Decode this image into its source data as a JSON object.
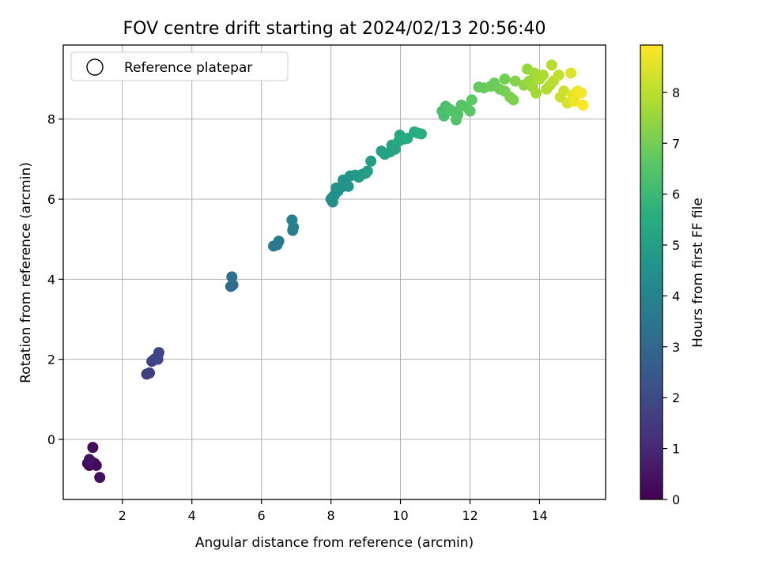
{
  "chart_data": {
    "type": "scatter",
    "title": "FOV centre drift starting at 2024/02/13 20:56:40",
    "xlabel": "Angular distance from reference (arcmin)",
    "ylabel": "Rotation from reference (arcmin)",
    "xlim": [
      0.3,
      15.9
    ],
    "ylim": [
      -1.5,
      9.85
    ],
    "xticks": [
      2,
      4,
      6,
      8,
      10,
      12,
      14
    ],
    "yticks": [
      0,
      2,
      4,
      6,
      8
    ],
    "grid": true,
    "legend": {
      "position": "top-left",
      "entries": [
        "Reference platepar"
      ],
      "marker": "hollow-circle"
    },
    "colorbar": {
      "label": "Hours from first FF file",
      "range": [
        0,
        8.93
      ],
      "ticks": [
        0,
        1,
        2,
        3,
        4,
        5,
        6,
        7,
        8
      ],
      "colormap": "viridis"
    },
    "points": [
      {
        "x": 1.05,
        "y": -0.65,
        "c": 0.05
      },
      {
        "x": 1.1,
        "y": -0.55,
        "c": 0.1
      },
      {
        "x": 1.2,
        "y": -0.6,
        "c": 0.15
      },
      {
        "x": 1.25,
        "y": -0.65,
        "c": 0.2
      },
      {
        "x": 1.0,
        "y": -0.6,
        "c": 0.25
      },
      {
        "x": 1.15,
        "y": -0.2,
        "c": 0.3
      },
      {
        "x": 1.35,
        "y": -0.95,
        "c": 0.35
      },
      {
        "x": 1.05,
        "y": -0.5,
        "c": 0.4
      },
      {
        "x": 2.7,
        "y": 1.63,
        "c": 1.6
      },
      {
        "x": 2.78,
        "y": 1.66,
        "c": 1.65
      },
      {
        "x": 2.85,
        "y": 1.95,
        "c": 1.7
      },
      {
        "x": 2.92,
        "y": 2.0,
        "c": 1.75
      },
      {
        "x": 3.0,
        "y": 2.05,
        "c": 1.8
      },
      {
        "x": 3.05,
        "y": 2.17,
        "c": 1.85
      },
      {
        "x": 3.02,
        "y": 2.0,
        "c": 1.9
      },
      {
        "x": 5.12,
        "y": 3.82,
        "c": 3.1
      },
      {
        "x": 5.18,
        "y": 3.86,
        "c": 3.15
      },
      {
        "x": 5.15,
        "y": 4.06,
        "c": 3.2
      },
      {
        "x": 6.35,
        "y": 4.83,
        "c": 3.55
      },
      {
        "x": 6.45,
        "y": 4.86,
        "c": 3.6
      },
      {
        "x": 6.5,
        "y": 4.95,
        "c": 3.65
      },
      {
        "x": 6.9,
        "y": 5.22,
        "c": 3.75
      },
      {
        "x": 6.92,
        "y": 5.3,
        "c": 3.8
      },
      {
        "x": 6.88,
        "y": 5.48,
        "c": 3.85
      },
      {
        "x": 8.0,
        "y": 6.0,
        "c": 4.3
      },
      {
        "x": 8.05,
        "y": 6.05,
        "c": 4.35
      },
      {
        "x": 8.05,
        "y": 5.93,
        "c": 4.38
      },
      {
        "x": 8.1,
        "y": 6.1,
        "c": 4.42
      },
      {
        "x": 8.2,
        "y": 6.2,
        "c": 4.46
      },
      {
        "x": 8.15,
        "y": 6.28,
        "c": 4.5
      },
      {
        "x": 8.3,
        "y": 6.3,
        "c": 4.55
      },
      {
        "x": 8.35,
        "y": 6.48,
        "c": 4.6
      },
      {
        "x": 8.5,
        "y": 6.32,
        "c": 4.65
      },
      {
        "x": 8.55,
        "y": 6.58,
        "c": 4.7
      },
      {
        "x": 8.7,
        "y": 6.6,
        "c": 4.75
      },
      {
        "x": 8.8,
        "y": 6.55,
        "c": 4.8
      },
      {
        "x": 8.9,
        "y": 6.62,
        "c": 4.85
      },
      {
        "x": 9.05,
        "y": 6.7,
        "c": 4.9
      },
      {
        "x": 9.0,
        "y": 6.65,
        "c": 4.93
      },
      {
        "x": 9.15,
        "y": 6.95,
        "c": 4.98
      },
      {
        "x": 9.45,
        "y": 7.2,
        "c": 5.05
      },
      {
        "x": 9.55,
        "y": 7.12,
        "c": 5.1
      },
      {
        "x": 9.7,
        "y": 7.18,
        "c": 5.15
      },
      {
        "x": 9.75,
        "y": 7.35,
        "c": 5.2
      },
      {
        "x": 9.85,
        "y": 7.25,
        "c": 5.25
      },
      {
        "x": 9.95,
        "y": 7.45,
        "c": 5.3
      },
      {
        "x": 9.98,
        "y": 7.6,
        "c": 5.35
      },
      {
        "x": 10.1,
        "y": 7.5,
        "c": 5.4
      },
      {
        "x": 10.2,
        "y": 7.52,
        "c": 5.45
      },
      {
        "x": 10.4,
        "y": 7.68,
        "c": 5.5
      },
      {
        "x": 10.5,
        "y": 7.65,
        "c": 5.55
      },
      {
        "x": 10.6,
        "y": 7.63,
        "c": 5.6
      },
      {
        "x": 11.2,
        "y": 8.2,
        "c": 6.2
      },
      {
        "x": 11.25,
        "y": 8.08,
        "c": 6.25
      },
      {
        "x": 11.3,
        "y": 8.32,
        "c": 6.3
      },
      {
        "x": 11.4,
        "y": 8.25,
        "c": 6.35
      },
      {
        "x": 11.5,
        "y": 8.2,
        "c": 6.4
      },
      {
        "x": 11.6,
        "y": 7.98,
        "c": 6.42
      },
      {
        "x": 11.65,
        "y": 8.12,
        "c": 6.45
      },
      {
        "x": 11.75,
        "y": 8.35,
        "c": 6.5
      },
      {
        "x": 11.9,
        "y": 8.3,
        "c": 6.55
      },
      {
        "x": 12.0,
        "y": 8.2,
        "c": 6.6
      },
      {
        "x": 12.05,
        "y": 8.48,
        "c": 6.65
      },
      {
        "x": 12.25,
        "y": 8.8,
        "c": 6.75
      },
      {
        "x": 12.4,
        "y": 8.78,
        "c": 6.8
      },
      {
        "x": 12.6,
        "y": 8.82,
        "c": 6.85
      },
      {
        "x": 12.7,
        "y": 8.9,
        "c": 6.9
      },
      {
        "x": 12.85,
        "y": 8.75,
        "c": 6.95
      },
      {
        "x": 13.0,
        "y": 9.0,
        "c": 7.0
      },
      {
        "x": 13.0,
        "y": 8.7,
        "c": 7.05
      },
      {
        "x": 13.15,
        "y": 8.55,
        "c": 7.1
      },
      {
        "x": 13.25,
        "y": 8.48,
        "c": 7.15
      },
      {
        "x": 13.3,
        "y": 8.95,
        "c": 7.2
      },
      {
        "x": 13.55,
        "y": 8.85,
        "c": 7.4
      },
      {
        "x": 13.65,
        "y": 9.25,
        "c": 7.5
      },
      {
        "x": 13.7,
        "y": 8.95,
        "c": 7.55
      },
      {
        "x": 13.8,
        "y": 8.8,
        "c": 7.6
      },
      {
        "x": 13.85,
        "y": 9.15,
        "c": 7.65
      },
      {
        "x": 13.9,
        "y": 8.65,
        "c": 7.7
      },
      {
        "x": 14.0,
        "y": 9.0,
        "c": 7.75
      },
      {
        "x": 14.1,
        "y": 9.1,
        "c": 7.8
      },
      {
        "x": 14.2,
        "y": 8.75,
        "c": 7.85
      },
      {
        "x": 14.3,
        "y": 8.85,
        "c": 7.9
      },
      {
        "x": 14.35,
        "y": 9.35,
        "c": 7.95
      },
      {
        "x": 14.4,
        "y": 8.95,
        "c": 8.0
      },
      {
        "x": 14.55,
        "y": 9.1,
        "c": 8.1
      },
      {
        "x": 14.6,
        "y": 8.55,
        "c": 8.2
      },
      {
        "x": 14.7,
        "y": 8.7,
        "c": 8.3
      },
      {
        "x": 14.8,
        "y": 8.4,
        "c": 8.4
      },
      {
        "x": 14.9,
        "y": 9.15,
        "c": 8.5
      },
      {
        "x": 14.95,
        "y": 8.6,
        "c": 8.6
      },
      {
        "x": 15.0,
        "y": 8.45,
        "c": 8.7
      },
      {
        "x": 15.1,
        "y": 8.7,
        "c": 8.75
      },
      {
        "x": 15.2,
        "y": 8.65,
        "c": 8.8
      },
      {
        "x": 15.25,
        "y": 8.35,
        "c": 8.9
      }
    ]
  }
}
